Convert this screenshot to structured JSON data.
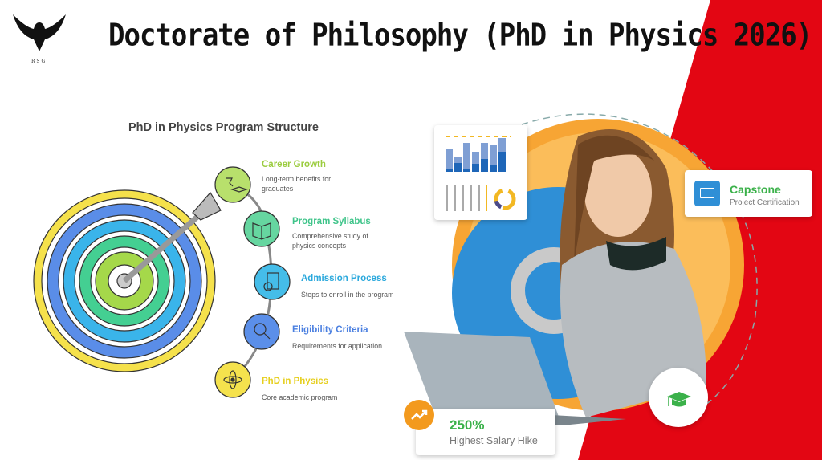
{
  "header": {
    "title": "Doctorate of Philosophy (PhD in Physics 2026)",
    "logo_text": "R S G",
    "logo_icon": "eagle-icon"
  },
  "infographic": {
    "title": "PhD in Physics Program Structure",
    "steps": [
      {
        "title": "Career Growth",
        "desc": "Long-term benefits for graduates",
        "color": "#9bcc3f",
        "icon": "pin-graduation-icon"
      },
      {
        "title": "Program Syllabus",
        "desc": "Comprehensive study of physics concepts",
        "color": "#3fc48a",
        "icon": "book-icon"
      },
      {
        "title": "Admission Process",
        "desc": "Steps to enroll in the program",
        "color": "#2aa8dc",
        "icon": "clipboard-check-icon"
      },
      {
        "title": "Eligibility Criteria",
        "desc": "Requirements for application",
        "color": "#4a7fe0",
        "icon": "person-search-icon"
      },
      {
        "title": "PhD in Physics",
        "desc": "Core academic program",
        "color": "#e6cf1e",
        "icon": "atom-icon"
      }
    ]
  },
  "promo": {
    "capstone_title": "Capstone",
    "capstone_sub": "Project Certification",
    "salary_value": "250%",
    "salary_label": "Highest Salary Hike",
    "accent_red": "#e30613",
    "accent_orange": "#f7a534",
    "accent_blue": "#2f8fd6"
  }
}
